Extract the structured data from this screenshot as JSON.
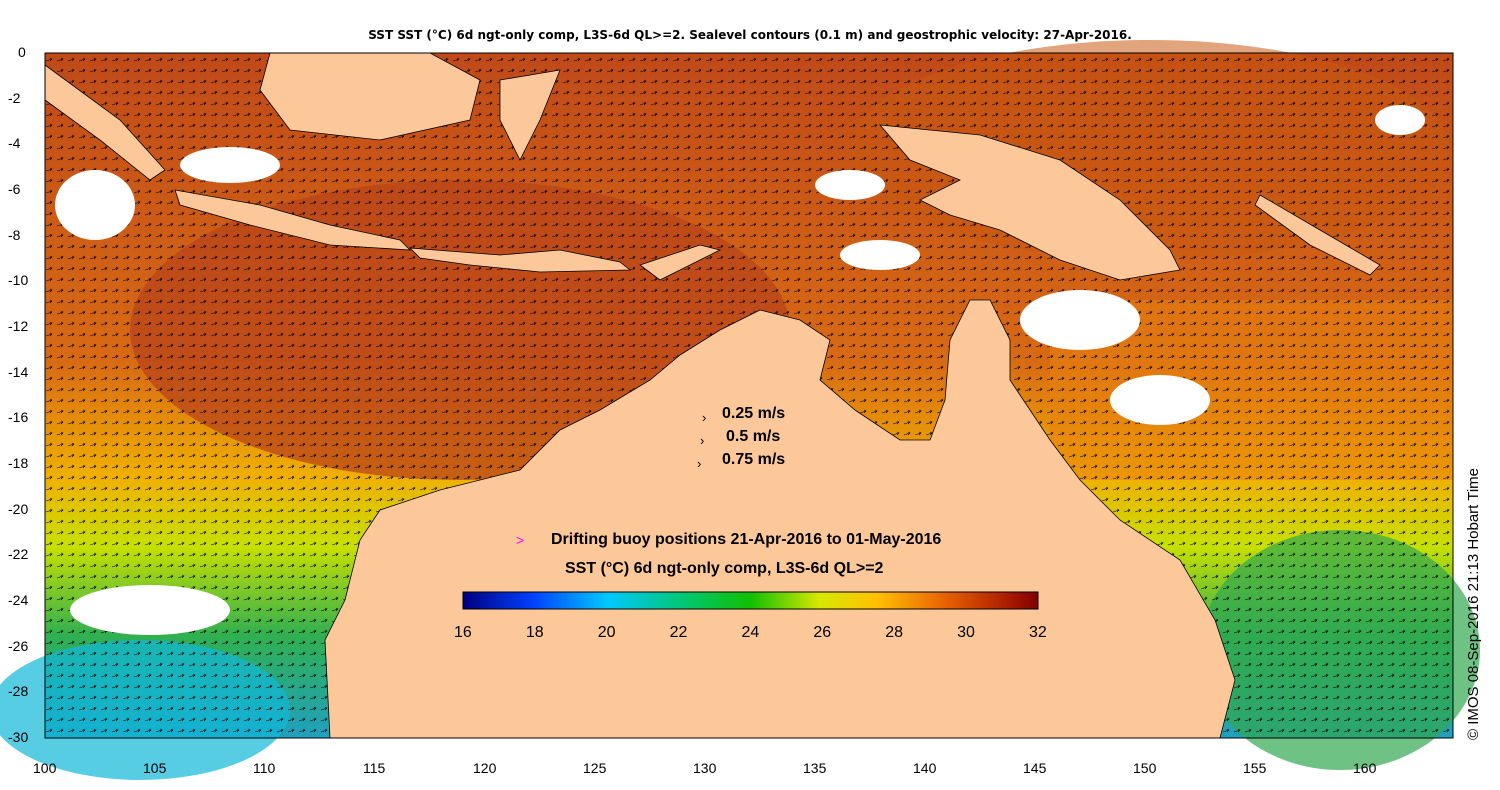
{
  "title": "SST SST (°C) 6d ngt-only comp, L3S-6d QL>=2. Sealevel contours (0.1 m) and geostrophic velocity: 27-Apr-2016.",
  "credit": "© IMOS 08-Sep-2016 21:13 Hobart Time",
  "velocity_legend": [
    "0.25 m/s",
    "0.5 m/s",
    "0.75 m/s"
  ],
  "buoy_legend": {
    "symbol": ">",
    "label": "Drifting buoy positions 21-Apr-2016 to 01-May-2016",
    "symbol_color": "#ff00ff"
  },
  "colorbar": {
    "title": "SST (°C) 6d ngt-only comp, L3S-6d QL>=2",
    "ticks": [
      "16",
      "18",
      "20",
      "22",
      "24",
      "26",
      "28",
      "30",
      "32"
    ],
    "colors": [
      "#00007f",
      "#0040ff",
      "#00c8ff",
      "#00c880",
      "#10c000",
      "#d8e800",
      "#ffc000",
      "#e86000",
      "#b02000",
      "#800000"
    ]
  },
  "axes": {
    "x_ticks": [
      "100",
      "105",
      "110",
      "115",
      "120",
      "125",
      "130",
      "135",
      "140",
      "145",
      "150",
      "155",
      "160"
    ],
    "y_ticks": [
      "0",
      "-2",
      "-4",
      "-6",
      "-8",
      "-10",
      "-12",
      "-14",
      "-16",
      "-18",
      "-20",
      "-22",
      "-24",
      "-26",
      "-28",
      "-30"
    ],
    "lon_range": [
      100,
      164
    ],
    "lat_range": [
      -30,
      0
    ]
  },
  "colors": {
    "land": "#fcc89a",
    "ocean_warm": "#c0501a",
    "ocean_mid": "#e07a10",
    "ocean_cool": "#e8d000",
    "ocean_cold": "#20b060",
    "cloud": "#ffffff"
  }
}
